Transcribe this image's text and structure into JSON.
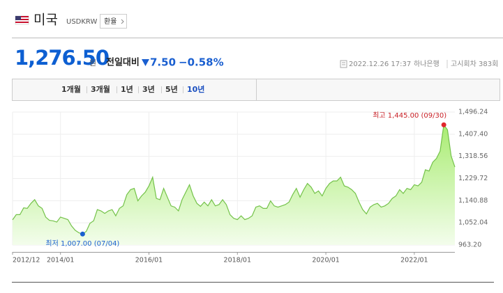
{
  "header": {
    "country": "미국",
    "code": "USDKRW",
    "button": "환율"
  },
  "price": {
    "value": "1,276.50",
    "unit": "원",
    "change_label": "전일대비",
    "change": "7.50",
    "change_pct": "−0.58%"
  },
  "source": {
    "datetime": "2022.12.26 17:37",
    "bank": "하나은행",
    "round": "고시회차 383회"
  },
  "tabs": [
    "1개월",
    "3개월",
    "1년",
    "3년",
    "5년",
    "10년"
  ],
  "chart_data": {
    "type": "area",
    "color": "#74c24a",
    "x": [
      "2012/12",
      "2013/01",
      "2013/02",
      "2013/03",
      "2013/04",
      "2013/05",
      "2013/06",
      "2013/07",
      "2013/08",
      "2013/09",
      "2013/10",
      "2013/11",
      "2013/12",
      "2014/01",
      "2014/02",
      "2014/03",
      "2014/04",
      "2014/05",
      "2014/06",
      "2014/07",
      "2014/08",
      "2014/09",
      "2014/10",
      "2014/11",
      "2014/12",
      "2015/01",
      "2015/02",
      "2015/03",
      "2015/04",
      "2015/05",
      "2015/06",
      "2015/07",
      "2015/08",
      "2015/09",
      "2015/10",
      "2015/11",
      "2015/12",
      "2016/01",
      "2016/02",
      "2016/03",
      "2016/04",
      "2016/05",
      "2016/06",
      "2016/07",
      "2016/08",
      "2016/09",
      "2016/10",
      "2016/11",
      "2016/12",
      "2017/01",
      "2017/02",
      "2017/03",
      "2017/04",
      "2017/05",
      "2017/06",
      "2017/07",
      "2017/08",
      "2017/09",
      "2017/10",
      "2017/11",
      "2017/12",
      "2018/01",
      "2018/02",
      "2018/03",
      "2018/04",
      "2018/05",
      "2018/06",
      "2018/07",
      "2018/08",
      "2018/09",
      "2018/10",
      "2018/11",
      "2018/12",
      "2019/01",
      "2019/02",
      "2019/03",
      "2019/04",
      "2019/05",
      "2019/06",
      "2019/07",
      "2019/08",
      "2019/09",
      "2019/10",
      "2019/11",
      "2019/12",
      "2020/01",
      "2020/02",
      "2020/03",
      "2020/04",
      "2020/05",
      "2020/06",
      "2020/07",
      "2020/08",
      "2020/09",
      "2020/10",
      "2020/11",
      "2020/12",
      "2021/01",
      "2021/02",
      "2021/03",
      "2021/04",
      "2021/05",
      "2021/06",
      "2021/07",
      "2021/08",
      "2021/09",
      "2021/10",
      "2021/11",
      "2021/12",
      "2022/01",
      "2022/02",
      "2022/03",
      "2022/04",
      "2022/05",
      "2022/06",
      "2022/07",
      "2022/08",
      "2022/09",
      "2022/10",
      "2022/11",
      "2022/12"
    ],
    "values": [
      1064,
      1085,
      1085,
      1112,
      1110,
      1130,
      1145,
      1120,
      1110,
      1075,
      1062,
      1060,
      1055,
      1075,
      1070,
      1065,
      1040,
      1022,
      1012,
      1007,
      1018,
      1050,
      1060,
      1105,
      1100,
      1090,
      1100,
      1105,
      1080,
      1110,
      1120,
      1165,
      1185,
      1190,
      1140,
      1160,
      1175,
      1200,
      1235,
      1150,
      1145,
      1190,
      1155,
      1120,
      1115,
      1100,
      1145,
      1175,
      1205,
      1160,
      1130,
      1118,
      1135,
      1120,
      1145,
      1120,
      1125,
      1145,
      1125,
      1085,
      1070,
      1065,
      1080,
      1065,
      1070,
      1080,
      1115,
      1120,
      1110,
      1110,
      1140,
      1120,
      1115,
      1120,
      1125,
      1135,
      1165,
      1190,
      1155,
      1185,
      1210,
      1195,
      1170,
      1180,
      1160,
      1190,
      1210,
      1220,
      1220,
      1235,
      1200,
      1195,
      1185,
      1170,
      1135,
      1105,
      1088,
      1115,
      1125,
      1130,
      1115,
      1120,
      1130,
      1150,
      1160,
      1185,
      1170,
      1190,
      1185,
      1205,
      1200,
      1215,
      1265,
      1260,
      1295,
      1310,
      1340,
      1445,
      1425,
      1320,
      1276
    ],
    "xticks": [
      "2012/12",
      "2014/01",
      "2016/01",
      "2018/01",
      "2020/01",
      "2022/01"
    ],
    "ylim": [
      963.2,
      1496.24
    ],
    "yticks": [
      {
        "value": 963.2,
        "label": "963.20"
      },
      {
        "value": 1052.04,
        "label": "1,052.04"
      },
      {
        "value": 1140.88,
        "label": "1,140.88"
      },
      {
        "value": 1229.72,
        "label": "1,229.72"
      },
      {
        "value": 1318.56,
        "label": "1,318.56"
      },
      {
        "value": 1407.4,
        "label": "1,407.40"
      },
      {
        "value": 1496.24,
        "label": "1,496.24"
      }
    ],
    "grid": true,
    "max_label": "최고 1,445.00 (09/30)",
    "min_label": "최저 1,007.00 (07/04)"
  }
}
